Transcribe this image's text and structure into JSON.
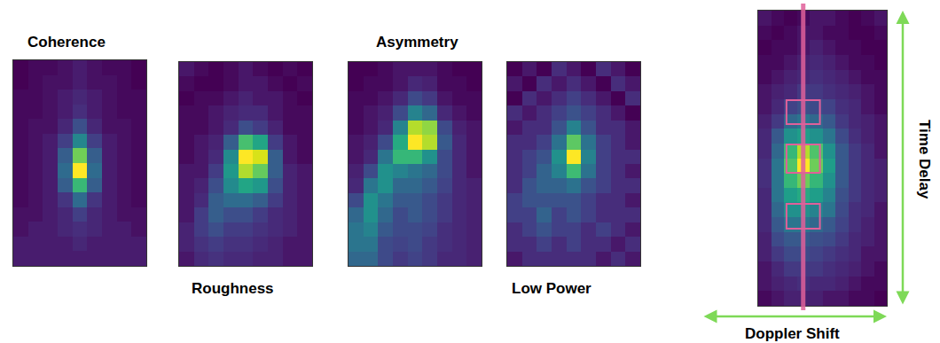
{
  "chart_data": [
    {
      "type": "heatmap",
      "title": "Coherence",
      "color": "Viridis",
      "tick_labels": false,
      "cells": [
        [
          0.08,
          0.1,
          0.1,
          0.12,
          0.15,
          0.12,
          0.1,
          0.1,
          0.08
        ],
        [
          0.08,
          0.1,
          0.12,
          0.12,
          0.15,
          0.12,
          0.12,
          0.1,
          0.08
        ],
        [
          0.1,
          0.1,
          0.12,
          0.15,
          0.18,
          0.15,
          0.12,
          0.1,
          0.1
        ],
        [
          0.1,
          0.1,
          0.12,
          0.15,
          0.2,
          0.15,
          0.12,
          0.1,
          0.1
        ],
        [
          0.1,
          0.12,
          0.12,
          0.18,
          0.3,
          0.18,
          0.12,
          0.12,
          0.1
        ],
        [
          0.1,
          0.12,
          0.15,
          0.25,
          0.5,
          0.25,
          0.15,
          0.12,
          0.1
        ],
        [
          0.1,
          0.12,
          0.15,
          0.35,
          0.8,
          0.35,
          0.15,
          0.12,
          0.1
        ],
        [
          0.1,
          0.12,
          0.15,
          0.4,
          1.0,
          0.4,
          0.15,
          0.12,
          0.1
        ],
        [
          0.1,
          0.12,
          0.15,
          0.35,
          0.7,
          0.35,
          0.15,
          0.12,
          0.1
        ],
        [
          0.1,
          0.12,
          0.15,
          0.22,
          0.4,
          0.22,
          0.15,
          0.12,
          0.1
        ],
        [
          0.12,
          0.12,
          0.15,
          0.18,
          0.25,
          0.18,
          0.15,
          0.12,
          0.12
        ],
        [
          0.12,
          0.15,
          0.15,
          0.18,
          0.2,
          0.18,
          0.15,
          0.15,
          0.12
        ],
        [
          0.15,
          0.15,
          0.15,
          0.15,
          0.18,
          0.15,
          0.15,
          0.15,
          0.15
        ],
        [
          0.15,
          0.15,
          0.15,
          0.15,
          0.15,
          0.15,
          0.15,
          0.15,
          0.15
        ]
      ]
    },
    {
      "type": "heatmap",
      "title": "Roughness",
      "color": "Viridis",
      "tick_labels": false,
      "cells": [
        [
          0.15,
          0.12,
          0.1,
          0.12,
          0.15,
          0.12,
          0.1,
          0.12,
          0.1
        ],
        [
          0.12,
          0.1,
          0.1,
          0.12,
          0.15,
          0.15,
          0.12,
          0.1,
          0.12
        ],
        [
          0.1,
          0.12,
          0.12,
          0.15,
          0.18,
          0.15,
          0.15,
          0.12,
          0.1
        ],
        [
          0.12,
          0.12,
          0.15,
          0.18,
          0.2,
          0.2,
          0.15,
          0.12,
          0.12
        ],
        [
          0.12,
          0.12,
          0.15,
          0.2,
          0.3,
          0.25,
          0.18,
          0.12,
          0.12
        ],
        [
          0.12,
          0.15,
          0.18,
          0.35,
          0.7,
          0.6,
          0.25,
          0.15,
          0.12
        ],
        [
          0.12,
          0.15,
          0.2,
          0.5,
          0.95,
          0.9,
          0.35,
          0.15,
          0.12
        ],
        [
          0.15,
          0.15,
          0.25,
          0.55,
          0.85,
          0.75,
          0.35,
          0.18,
          0.15
        ],
        [
          0.15,
          0.18,
          0.3,
          0.5,
          0.6,
          0.55,
          0.3,
          0.18,
          0.15
        ],
        [
          0.15,
          0.2,
          0.35,
          0.4,
          0.4,
          0.35,
          0.25,
          0.18,
          0.15
        ],
        [
          0.15,
          0.25,
          0.35,
          0.3,
          0.3,
          0.25,
          0.2,
          0.18,
          0.15
        ],
        [
          0.18,
          0.25,
          0.3,
          0.25,
          0.25,
          0.22,
          0.2,
          0.18,
          0.15
        ],
        [
          0.18,
          0.22,
          0.25,
          0.22,
          0.22,
          0.2,
          0.18,
          0.15,
          0.15
        ],
        [
          0.15,
          0.2,
          0.22,
          0.2,
          0.2,
          0.18,
          0.18,
          0.15,
          0.15
        ]
      ]
    },
    {
      "type": "heatmap",
      "title": "Asymmetry",
      "color": "Viridis",
      "tick_labels": false,
      "cells": [
        [
          0.1,
          0.1,
          0.12,
          0.15,
          0.15,
          0.15,
          0.12,
          0.1,
          0.1
        ],
        [
          0.1,
          0.12,
          0.12,
          0.15,
          0.2,
          0.18,
          0.12,
          0.12,
          0.1
        ],
        [
          0.12,
          0.12,
          0.15,
          0.2,
          0.3,
          0.25,
          0.15,
          0.12,
          0.12
        ],
        [
          0.12,
          0.15,
          0.18,
          0.3,
          0.5,
          0.4,
          0.2,
          0.15,
          0.12
        ],
        [
          0.12,
          0.15,
          0.2,
          0.5,
          0.9,
          0.85,
          0.3,
          0.18,
          0.15
        ],
        [
          0.15,
          0.18,
          0.3,
          0.65,
          1.0,
          0.9,
          0.35,
          0.2,
          0.15
        ],
        [
          0.15,
          0.2,
          0.45,
          0.7,
          0.7,
          0.55,
          0.3,
          0.2,
          0.15
        ],
        [
          0.18,
          0.3,
          0.55,
          0.5,
          0.45,
          0.4,
          0.3,
          0.2,
          0.15
        ],
        [
          0.2,
          0.45,
          0.55,
          0.4,
          0.4,
          0.35,
          0.28,
          0.2,
          0.18
        ],
        [
          0.3,
          0.55,
          0.45,
          0.35,
          0.35,
          0.3,
          0.25,
          0.2,
          0.18
        ],
        [
          0.4,
          0.55,
          0.4,
          0.3,
          0.35,
          0.3,
          0.25,
          0.2,
          0.18
        ],
        [
          0.45,
          0.5,
          0.35,
          0.3,
          0.3,
          0.28,
          0.22,
          0.2,
          0.18
        ],
        [
          0.45,
          0.45,
          0.3,
          0.28,
          0.3,
          0.25,
          0.22,
          0.2,
          0.18
        ],
        [
          0.4,
          0.4,
          0.3,
          0.25,
          0.28,
          0.25,
          0.2,
          0.2,
          0.18
        ]
      ]
    },
    {
      "type": "heatmap",
      "title": "Low Power",
      "color": "Viridis",
      "tick_labels": false,
      "cells": [
        [
          0.2,
          0.25,
          0.2,
          0.3,
          0.25,
          0.2,
          0.3,
          0.25,
          0.2
        ],
        [
          0.25,
          0.2,
          0.3,
          0.25,
          0.3,
          0.25,
          0.2,
          0.3,
          0.25
        ],
        [
          0.2,
          0.3,
          0.25,
          0.3,
          0.35,
          0.3,
          0.25,
          0.2,
          0.3
        ],
        [
          0.3,
          0.25,
          0.3,
          0.35,
          0.4,
          0.35,
          0.3,
          0.25,
          0.2
        ],
        [
          0.25,
          0.3,
          0.3,
          0.4,
          0.55,
          0.4,
          0.3,
          0.3,
          0.25
        ],
        [
          0.3,
          0.3,
          0.35,
          0.5,
          0.8,
          0.5,
          0.35,
          0.3,
          0.25
        ],
        [
          0.3,
          0.35,
          0.4,
          0.6,
          1.0,
          0.55,
          0.35,
          0.3,
          0.3
        ],
        [
          0.3,
          0.35,
          0.45,
          0.55,
          0.75,
          0.5,
          0.35,
          0.3,
          0.25
        ],
        [
          0.3,
          0.4,
          0.45,
          0.45,
          0.5,
          0.4,
          0.35,
          0.3,
          0.3
        ],
        [
          0.35,
          0.4,
          0.4,
          0.4,
          0.4,
          0.35,
          0.3,
          0.3,
          0.25
        ],
        [
          0.35,
          0.35,
          0.45,
          0.35,
          0.4,
          0.35,
          0.3,
          0.3,
          0.3
        ],
        [
          0.3,
          0.35,
          0.4,
          0.35,
          0.35,
          0.3,
          0.35,
          0.3,
          0.25
        ],
        [
          0.3,
          0.3,
          0.35,
          0.3,
          0.35,
          0.3,
          0.3,
          0.25,
          0.3
        ],
        [
          0.25,
          0.3,
          0.3,
          0.3,
          0.3,
          0.3,
          0.25,
          0.3,
          0.25
        ]
      ]
    },
    {
      "type": "heatmap",
      "xlabel": "Doppler Shift",
      "ylabel": "Time Delay",
      "color": "Viridis",
      "tick_labels": false,
      "cells": [
        [
          0.15,
          0.12,
          0.1,
          0.12,
          0.15,
          0.15,
          0.12,
          0.1,
          0.12,
          0.15
        ],
        [
          0.12,
          0.1,
          0.12,
          0.15,
          0.15,
          0.12,
          0.12,
          0.1,
          0.1,
          0.12
        ],
        [
          0.1,
          0.12,
          0.12,
          0.15,
          0.18,
          0.15,
          0.12,
          0.12,
          0.1,
          0.1
        ],
        [
          0.12,
          0.12,
          0.15,
          0.18,
          0.2,
          0.18,
          0.15,
          0.12,
          0.12,
          0.1
        ],
        [
          0.12,
          0.15,
          0.18,
          0.2,
          0.22,
          0.2,
          0.18,
          0.15,
          0.12,
          0.12
        ],
        [
          0.15,
          0.18,
          0.2,
          0.25,
          0.25,
          0.22,
          0.2,
          0.18,
          0.15,
          0.12
        ],
        [
          0.15,
          0.2,
          0.28,
          0.32,
          0.3,
          0.28,
          0.22,
          0.2,
          0.15,
          0.12
        ],
        [
          0.18,
          0.25,
          0.4,
          0.45,
          0.4,
          0.35,
          0.25,
          0.2,
          0.18,
          0.15
        ],
        [
          0.2,
          0.35,
          0.55,
          0.6,
          0.55,
          0.45,
          0.3,
          0.22,
          0.18,
          0.15
        ],
        [
          0.2,
          0.4,
          0.7,
          0.9,
          0.75,
          0.55,
          0.35,
          0.25,
          0.2,
          0.15
        ],
        [
          0.22,
          0.45,
          0.75,
          1.0,
          0.8,
          0.6,
          0.35,
          0.25,
          0.2,
          0.18
        ],
        [
          0.22,
          0.45,
          0.7,
          0.8,
          0.7,
          0.55,
          0.35,
          0.25,
          0.2,
          0.18
        ],
        [
          0.2,
          0.45,
          0.6,
          0.65,
          0.6,
          0.5,
          0.32,
          0.25,
          0.2,
          0.18
        ],
        [
          0.2,
          0.4,
          0.55,
          0.55,
          0.5,
          0.45,
          0.3,
          0.22,
          0.2,
          0.15
        ],
        [
          0.2,
          0.35,
          0.45,
          0.45,
          0.4,
          0.35,
          0.28,
          0.22,
          0.18,
          0.15
        ],
        [
          0.18,
          0.3,
          0.35,
          0.35,
          0.32,
          0.3,
          0.25,
          0.2,
          0.18,
          0.15
        ],
        [
          0.18,
          0.25,
          0.3,
          0.3,
          0.28,
          0.25,
          0.22,
          0.2,
          0.15,
          0.15
        ],
        [
          0.15,
          0.2,
          0.25,
          0.25,
          0.25,
          0.22,
          0.2,
          0.18,
          0.15,
          0.12
        ],
        [
          0.15,
          0.18,
          0.2,
          0.22,
          0.2,
          0.2,
          0.18,
          0.15,
          0.12,
          0.12
        ],
        [
          0.12,
          0.15,
          0.18,
          0.18,
          0.18,
          0.15,
          0.15,
          0.12,
          0.12,
          0.1
        ]
      ]
    }
  ]
}
